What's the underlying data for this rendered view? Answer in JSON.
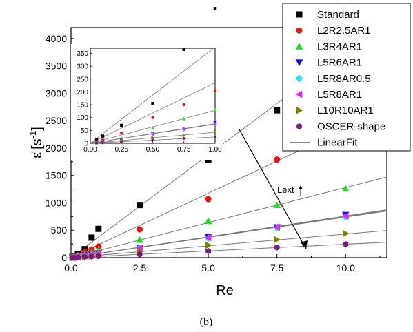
{
  "chart_data": [
    {
      "type": "scatter",
      "xlabel": "Re",
      "ylabel": "ε̇ [s⁻¹]",
      "ylabel_base": "ε̇",
      "ylabel_unit": "[s",
      "ylabel_sup": "-1",
      "ylabel_close": "]",
      "xlim": [
        0,
        11.5
      ],
      "ylim": [
        0,
        4200
      ],
      "xticks": [
        0.0,
        2.5,
        5.0,
        7.5,
        10.0
      ],
      "xtick_labels": [
        "0.0",
        "2.5",
        "5.0",
        "7.5",
        "10.0"
      ],
      "yticks": [
        0,
        500,
        1000,
        1500,
        2000,
        2500,
        3000,
        3500,
        4000
      ],
      "ytick_labels": [
        "0",
        "500",
        "1000",
        "1500",
        "2000",
        "2500",
        "3000",
        "3500",
        "4000"
      ],
      "grid": false,
      "legend_placement": "top-right",
      "x": [
        0.05,
        0.1,
        0.25,
        0.5,
        0.75,
        1.0,
        2.5,
        5.0,
        7.5,
        10.0
      ],
      "series": [
        {
          "name": "Standard",
          "marker": "square",
          "color": "#000000",
          "values": [
            14,
            28,
            70,
            155,
            365,
            525,
            960,
            1790,
            2690,
            null
          ],
          "fit_slope": 375
        },
        {
          "name": "L2R2.5AR1",
          "marker": "circle",
          "color": "#ee1111",
          "values": [
            7,
            13,
            40,
            100,
            150,
            205,
            515,
            1070,
            1790,
            null
          ],
          "fit_slope": 235
        },
        {
          "name": "L3R4AR1",
          "marker": "triangle-up",
          "color": "#22dd22",
          "values": [
            4,
            8,
            20,
            60,
            95,
            130,
            325,
            670,
            960,
            1260
          ],
          "fit_slope": 128
        },
        {
          "name": "L5R6AR1",
          "marker": "triangle-down",
          "color": "#1111ee",
          "values": [
            3,
            5,
            13,
            38,
            55,
            80,
            185,
            375,
            555,
            780
          ],
          "fit_slope": 76
        },
        {
          "name": "L5R8AR0.5",
          "marker": "diamond",
          "color": "#22e6f0",
          "values": [
            2.5,
            5,
            12,
            36,
            52,
            75,
            175,
            355,
            540,
            740
          ],
          "fit_slope": 74
        },
        {
          "name": "L5R8AR1",
          "marker": "triangle-left",
          "color": "#ee22ee",
          "values": [
            2.5,
            5,
            12,
            35,
            55,
            75,
            175,
            365,
            555,
            760
          ],
          "fit_slope": 75
        },
        {
          "name": "L10R10AR1",
          "marker": "triangle-right",
          "color": "#808000",
          "values": [
            2,
            4,
            8,
            22,
            30,
            45,
            110,
            225,
            330,
            440
          ],
          "fit_slope": 43
        },
        {
          "name": "OSCER-shape",
          "marker": "hexagon",
          "color": "#7a1a7a",
          "values": [
            1,
            2,
            5,
            13,
            19,
            25,
            60,
            120,
            185,
            245
          ],
          "fit_slope": 24.5
        }
      ],
      "fit_line": {
        "name": "LinearFit",
        "color": "#777777"
      },
      "annotation": {
        "text": "Lext",
        "arrow": "down-right"
      }
    },
    {
      "type": "scatter",
      "role": "inset",
      "xlim": [
        0,
        1.0
      ],
      "ylim": [
        0,
        370
      ],
      "xticks": [
        0.0,
        0.25,
        0.5,
        0.75,
        1.0
      ],
      "xtick_labels": [
        "0.00",
        "0.25",
        "0.50",
        "0.75",
        "1.00"
      ],
      "yticks": [
        0,
        50,
        100,
        150,
        200,
        250,
        300,
        350
      ],
      "ytick_labels": [
        "0",
        "50",
        "100",
        "150",
        "200",
        "250",
        "300",
        "350"
      ],
      "x_range_max": 1.0
    }
  ],
  "caption": "(b)"
}
